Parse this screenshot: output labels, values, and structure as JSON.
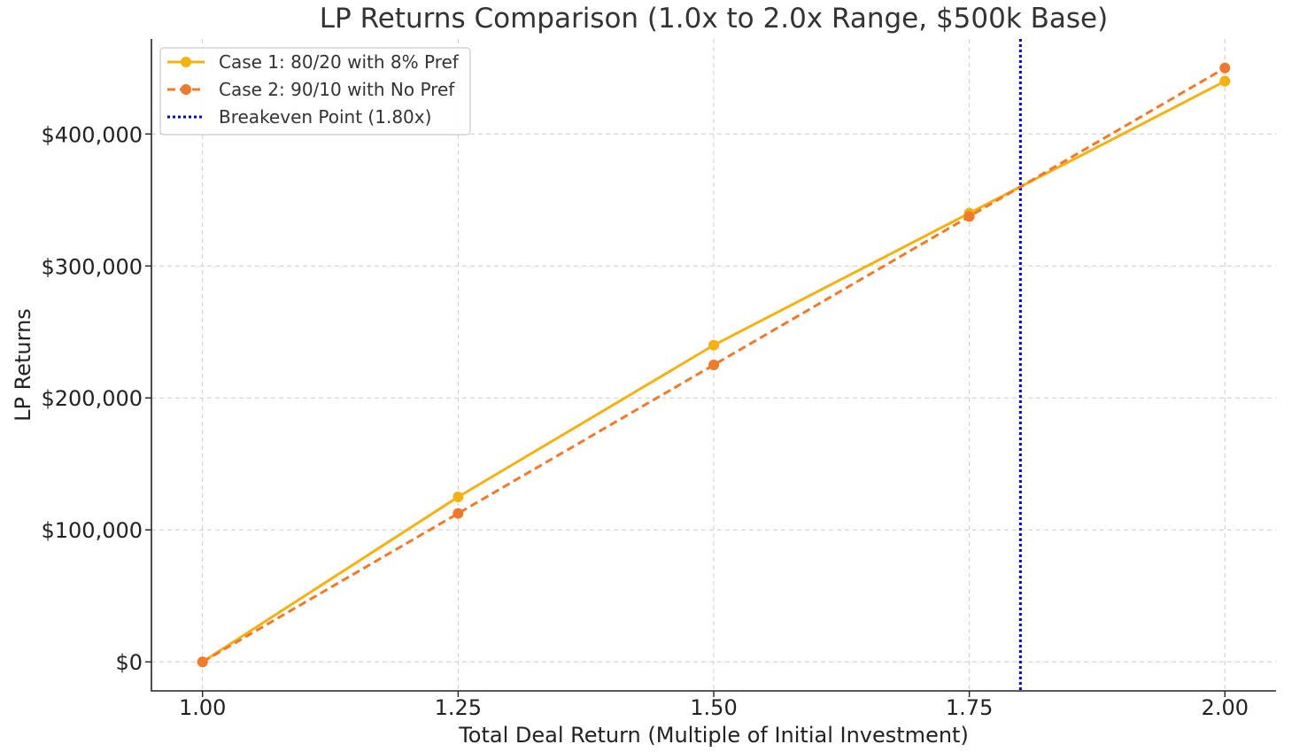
{
  "chart_data": {
    "type": "line",
    "title": "LP Returns Comparison (1.0x to 2.0x Range, $500k Base)",
    "xlabel": "Total Deal Return (Multiple of Initial Investment)",
    "ylabel": "LP Returns",
    "x": [
      1.0,
      1.25,
      1.5,
      1.75,
      2.0
    ],
    "x_ticks": [
      1.0,
      1.25,
      1.5,
      1.75,
      2.0
    ],
    "x_tick_labels": [
      "1.00",
      "1.25",
      "1.50",
      "1.75",
      "2.00"
    ],
    "y_ticks": [
      0,
      100000,
      200000,
      300000,
      400000
    ],
    "y_tick_labels": [
      "$0",
      "$100,000",
      "$200,000",
      "$300,000",
      "$400,000"
    ],
    "xlim": [
      0.95,
      2.05
    ],
    "ylim": [
      -22000,
      472000
    ],
    "grid": true,
    "legend_position": "top-left",
    "series": [
      {
        "name": "Case 1: 80/20 with 8% Pref",
        "values": [
          0,
          125000,
          240000,
          340000,
          440000
        ],
        "color": "#F5B111",
        "line_style": "solid",
        "marker": "circle"
      },
      {
        "name": "Case 2: 90/10 with No Pref",
        "values": [
          0,
          112500,
          225000,
          337500,
          450000
        ],
        "color": "#F07A2C",
        "line_style": "dashed",
        "marker": "circle"
      }
    ],
    "vlines": [
      {
        "name": "Breakeven Point (1.80x)",
        "x": 1.8,
        "color": "#0000CC",
        "line_style": "dotted"
      }
    ]
  }
}
